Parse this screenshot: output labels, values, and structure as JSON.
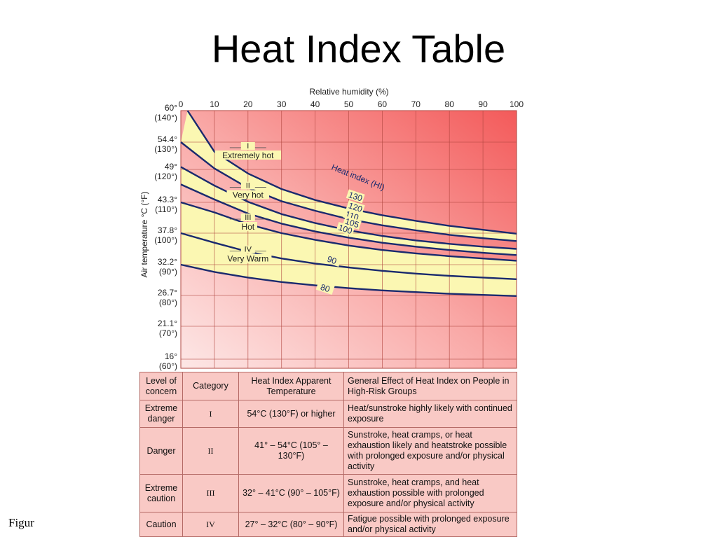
{
  "title": "Heat Index Table",
  "footer_label": "Figure",
  "chart_data": {
    "type": "line",
    "top_axis_label": "Relative humidity (%)",
    "y_axis_label": "Air temperature °C (°F)",
    "x_ticks": [
      0,
      10,
      20,
      30,
      40,
      50,
      60,
      70,
      80,
      90,
      100
    ],
    "xlim": [
      0,
      100
    ],
    "y_ticks": [
      {
        "value": 60,
        "label_c": "60°",
        "label_f": "(140°)"
      },
      {
        "value": 54.4,
        "label_c": "54.4°",
        "label_f": "(130°)"
      },
      {
        "value": 49,
        "label_c": "49°",
        "label_f": "(120°)"
      },
      {
        "value": 43.3,
        "label_c": "43.3°",
        "label_f": "(110°)"
      },
      {
        "value": 37.8,
        "label_c": "37.8°",
        "label_f": "(100°)"
      },
      {
        "value": 32.2,
        "label_c": "32.2°",
        "label_f": "(90°)"
      },
      {
        "value": 26.7,
        "label_c": "26.7°",
        "label_f": "(80°)"
      },
      {
        "value": 21.1,
        "label_c": "21.1°",
        "label_f": "(70°)"
      },
      {
        "value": 16,
        "label_c": "16°",
        "label_f": "(60°)"
      }
    ],
    "ylim": [
      16,
      60
    ],
    "curve_series_label": "Heat index (HI)",
    "series": [
      {
        "name": "130",
        "x": [
          2,
          10,
          20,
          30,
          40,
          50,
          60,
          70,
          80,
          90,
          100
        ],
        "y": [
          60,
          52.5,
          48.3,
          45.6,
          43.7,
          42.2,
          41.0,
          40.0,
          39.1,
          38.4,
          37.7
        ]
      },
      {
        "name": "120",
        "x": [
          0,
          10,
          20,
          30,
          40,
          50,
          60,
          70,
          80,
          90,
          100
        ],
        "y": [
          54.4,
          49.2,
          45.8,
          43.5,
          41.8,
          40.3,
          39.2,
          38.3,
          37.5,
          36.9,
          36.4
        ]
      },
      {
        "name": "110",
        "x": [
          0,
          10,
          20,
          30,
          40,
          50,
          60,
          70,
          80,
          90,
          100
        ],
        "y": [
          49.5,
          46.2,
          43.4,
          41.2,
          39.6,
          38.3,
          37.3,
          36.5,
          35.9,
          35.4,
          35.0
        ]
      },
      {
        "name": "105",
        "x": [
          0,
          10,
          20,
          30,
          40,
          50,
          60,
          70,
          80,
          90,
          100
        ],
        "y": [
          46.4,
          43.8,
          41.3,
          39.5,
          38.1,
          37.0,
          36.1,
          35.4,
          34.8,
          34.3,
          33.9
        ]
      },
      {
        "name": "100",
        "x": [
          0,
          10,
          20,
          30,
          40,
          50,
          60,
          70,
          80,
          90,
          100
        ],
        "y": [
          43.3,
          41.5,
          39.4,
          37.8,
          36.6,
          35.6,
          34.8,
          34.2,
          33.7,
          33.3,
          32.9
        ]
      },
      {
        "name": "90",
        "x": [
          0,
          10,
          20,
          30,
          40,
          50,
          60,
          70,
          80,
          90,
          100
        ],
        "y": [
          37.8,
          36.1,
          34.5,
          33.3,
          32.4,
          31.7,
          31.1,
          30.6,
          30.2,
          29.9,
          29.6
        ]
      },
      {
        "name": "80",
        "x": [
          0,
          10,
          20,
          30,
          40,
          50,
          60,
          70,
          80,
          90,
          100
        ],
        "y": [
          32.2,
          30.9,
          29.9,
          29.1,
          28.5,
          28.0,
          27.6,
          27.3,
          27.0,
          26.8,
          26.6
        ]
      }
    ],
    "bands": [
      {
        "label_numeral": "I",
        "label_text": "Extremely hot",
        "x": 20,
        "y": 53.3
      },
      {
        "label_numeral": "II",
        "label_text": "Very hot",
        "x": 20,
        "y": 45.9
      },
      {
        "label_numeral": "III",
        "label_text": "Hot",
        "x": 20,
        "y": 40.3
      },
      {
        "label_numeral": "IV",
        "label_text": "Very Warm",
        "x": 20,
        "y": 34.6
      }
    ],
    "colors": {
      "band_fill": "#fbf7b2",
      "curve": "#1a2a6e",
      "grid": "#b0463f",
      "bg_light": "#fde7e6",
      "bg_dark": "#f35a5a"
    }
  },
  "table": {
    "headers": [
      "Level of concern",
      "Category",
      "Heat Index Apparent Temperature",
      "General Effect of Heat Index on People in High-Risk Groups"
    ],
    "rows": [
      [
        "Extreme danger",
        "I",
        "54°C (130°F) or higher",
        "Heat/sunstroke highly likely with continued exposure"
      ],
      [
        "Danger",
        "II",
        "41° – 54°C (105° – 130°F)",
        "Sunstroke, heat cramps, or heat exhaustion likely and heatstroke possible with prolonged exposure and/or physical activity"
      ],
      [
        "Extreme caution",
        "III",
        "32° – 41°C (90° – 105°F)",
        "Sunstroke, heat cramps, and heat exhaustion possible with prolonged exposure and/or physical activity"
      ],
      [
        "Caution",
        "IV",
        "27° – 32°C (80° – 90°F)",
        "Fatigue possible with prolonged exposure and/or physical activity"
      ]
    ]
  }
}
